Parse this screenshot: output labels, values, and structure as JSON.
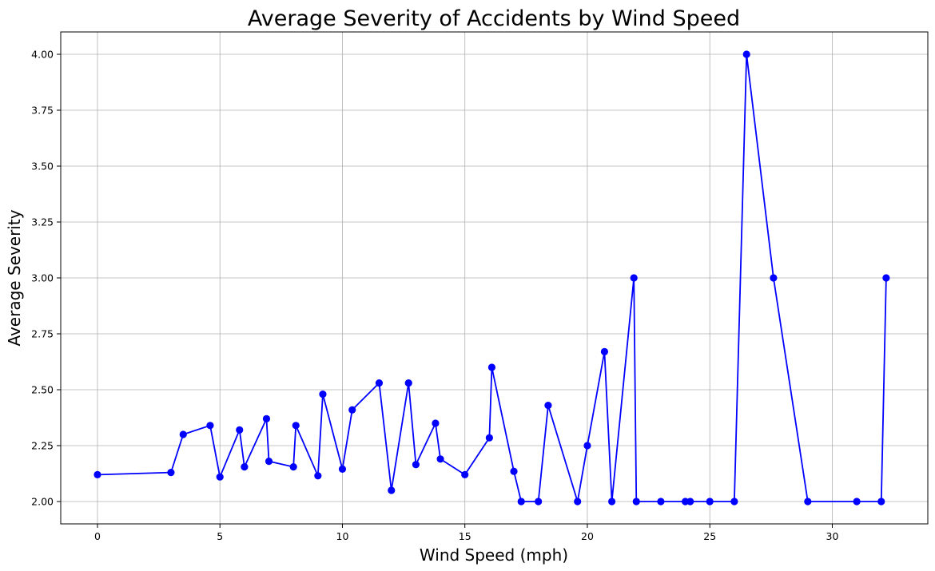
{
  "chart_data": {
    "type": "line",
    "title": "Average Severity of Accidents by Wind Speed",
    "xlabel": "Wind Speed (mph)",
    "ylabel": "Average Severity",
    "xlim": [
      -1.5,
      33.9
    ],
    "ylim": [
      1.9,
      4.1
    ],
    "xticks": [
      0,
      5,
      10,
      15,
      20,
      25,
      30
    ],
    "xtick_labels": [
      "0",
      "5",
      "10",
      "15",
      "20",
      "25",
      "30"
    ],
    "yticks": [
      2.0,
      2.25,
      2.5,
      2.75,
      3.0,
      3.25,
      3.5,
      3.75,
      4.0
    ],
    "ytick_labels": [
      "2.00",
      "2.25",
      "2.50",
      "2.75",
      "3.00",
      "3.25",
      "3.50",
      "3.75",
      "4.00"
    ],
    "grid": true,
    "series": [
      {
        "color": "#0000ff",
        "marker": "circle",
        "points": [
          [
            0,
            2.12
          ],
          [
            3,
            2.13
          ],
          [
            3.5,
            2.3
          ],
          [
            4.6,
            2.34
          ],
          [
            5,
            2.11
          ],
          [
            5.8,
            2.32
          ],
          [
            6,
            2.155
          ],
          [
            6.9,
            2.37
          ],
          [
            7,
            2.18
          ],
          [
            8,
            2.155
          ],
          [
            8.1,
            2.34
          ],
          [
            9,
            2.115
          ],
          [
            9.2,
            2.48
          ],
          [
            10,
            2.145
          ],
          [
            10.4,
            2.41
          ],
          [
            11.5,
            2.53
          ],
          [
            12,
            2.05
          ],
          [
            12.7,
            2.53
          ],
          [
            13,
            2.165
          ],
          [
            13.8,
            2.35
          ],
          [
            14,
            2.19
          ],
          [
            15,
            2.12
          ],
          [
            16,
            2.285
          ],
          [
            16.1,
            2.6
          ],
          [
            17,
            2.135
          ],
          [
            17.3,
            2.0
          ],
          [
            18,
            2.0
          ],
          [
            18.4,
            2.43
          ],
          [
            19.6,
            2.0
          ],
          [
            20,
            2.25
          ],
          [
            20.7,
            2.67
          ],
          [
            21,
            2.0
          ],
          [
            21.9,
            3.0
          ],
          [
            22,
            2.0
          ],
          [
            23,
            2.0
          ],
          [
            24,
            2.0
          ],
          [
            24.2,
            2.0
          ],
          [
            25,
            2.0
          ],
          [
            26,
            2.0
          ],
          [
            26.5,
            4.0
          ],
          [
            27.6,
            3.0
          ],
          [
            29,
            2.0
          ],
          [
            31,
            2.0
          ],
          [
            32,
            2.0
          ],
          [
            32.2,
            3.0
          ]
        ]
      }
    ]
  }
}
